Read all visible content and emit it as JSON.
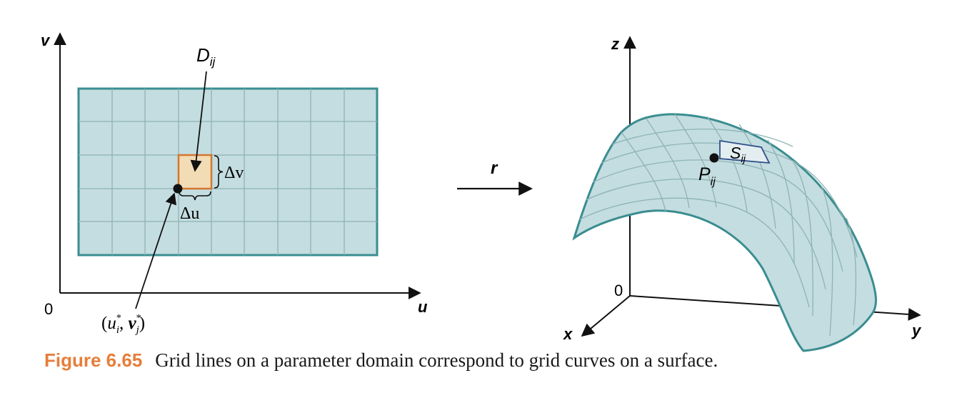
{
  "colors": {
    "accent": "#e67e3a",
    "surface_fill": "#c4dde0",
    "surface_stroke": "#3a8d90",
    "grid_line": "#8eb3b5",
    "patch_fill": "#f2dcb6",
    "patch_stroke": "#d4762e",
    "label_box_stroke": "#2f4f8a",
    "ink": "#111111"
  },
  "left_panel": {
    "axis_v": "v",
    "axis_u": "u",
    "origin": "0",
    "patch_label_main": "D",
    "patch_label_sub": "ij",
    "delta_v": "Δv",
    "delta_u": "Δu",
    "sample_point": {
      "open": "(",
      "u": "u",
      "u_sup": "*",
      "u_sub": "i",
      "sep": ", ",
      "v": "v",
      "v_sup": "*",
      "v_sub": "j",
      "close": ")"
    }
  },
  "map_label": "r",
  "right_panel": {
    "axis_z": "z",
    "axis_x": "x",
    "axis_y": "y",
    "origin": "0",
    "patch_label_main": "S",
    "patch_label_sub": "ij",
    "point_label_main": "P",
    "point_label_sub": "ij"
  },
  "caption": {
    "number": "Figure 6.65",
    "text": "Grid lines on a parameter domain correspond to grid curves on a surface."
  }
}
